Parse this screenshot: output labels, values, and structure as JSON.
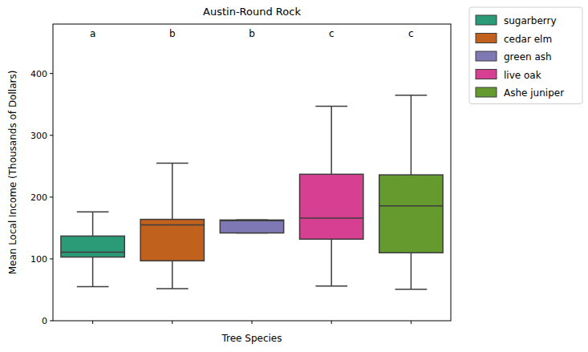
{
  "chart_data": {
    "type": "box",
    "title": "Austin-Round Rock",
    "x_label": "Tree Species",
    "y_label": "Mean Local Income (Thousands of Dollars)",
    "categories": [
      null,
      null,
      null,
      null,
      null
    ],
    "series": [
      {
        "name": "sugarberry",
        "color": "#2b9a77",
        "values": [
          55,
          103,
          111,
          137,
          176
        ]
      },
      {
        "name": "cedar elm",
        "color": "#c0611e",
        "values": [
          52,
          97,
          155,
          164,
          255
        ]
      },
      {
        "name": "green ash",
        "color": "#7e79b5",
        "values": [
          142,
          142,
          162,
          163,
          163
        ]
      },
      {
        "name": "live oak",
        "color": "#d63f92",
        "values": [
          56,
          132,
          166,
          237,
          347
        ]
      },
      {
        "name": "Ashe juniper",
        "color": "#659a2f",
        "values": [
          51,
          110,
          186,
          236,
          365
        ]
      }
    ],
    "annotations": [
      "a",
      "b",
      "b",
      "c",
      "c"
    ],
    "ylim": [
      0,
      480
    ],
    "yticks": [
      0,
      100,
      200,
      300,
      400
    ],
    "tick_labels": "y",
    "legend": "outside upper right"
  }
}
